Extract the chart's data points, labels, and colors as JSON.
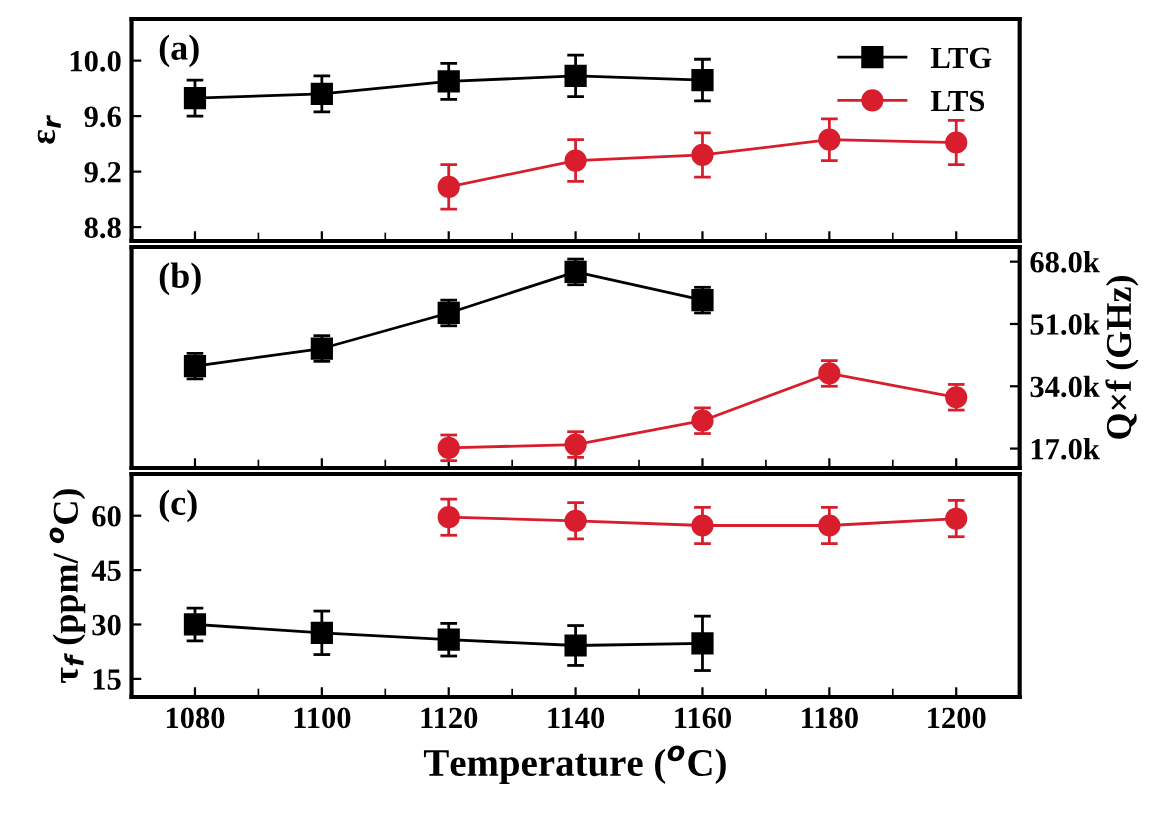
{
  "chart_data": [
    {
      "type": "line",
      "ylabel": "ε$_{r}$",
      "annotations": [
        "(a)"
      ],
      "legend": "top right",
      "tick_labels": "y",
      "x": [
        1080,
        1100,
        1120,
        1140,
        1160,
        1180,
        1200
      ],
      "xlim": [
        1070,
        1210
      ],
      "xticks": [
        1080,
        1100,
        1120,
        1140,
        1160,
        1180,
        1200
      ],
      "ylim": [
        8.7,
        10.3
      ],
      "yticks": [
        {
          "value": 8.8,
          "label": "8.8"
        },
        {
          "value": 9.2,
          "label": "9.2"
        },
        {
          "value": 9.6,
          "label": "9.6"
        },
        {
          "value": 10.0,
          "label": "10.0"
        }
      ],
      "series": [
        {
          "name": "LTG",
          "color": "#000000",
          "marker": "square",
          "values": [
            9.73,
            9.76,
            9.85,
            9.89,
            9.86,
            null,
            null
          ],
          "errors": [
            0.13,
            0.13,
            0.13,
            0.15,
            0.15,
            null,
            null
          ]
        },
        {
          "name": "LTS",
          "color": "#d81e2c",
          "marker": "circle",
          "values": [
            null,
            null,
            9.09,
            9.28,
            9.32,
            9.43,
            9.41
          ],
          "errors": [
            null,
            null,
            0.16,
            0.15,
            0.16,
            0.15,
            0.16
          ]
        }
      ]
    },
    {
      "type": "line",
      "y2label": "Q×f (GHz)",
      "annotations": [
        "(b)"
      ],
      "tick_labels": "y",
      "x": [
        1080,
        1100,
        1120,
        1140,
        1160,
        1180,
        1200
      ],
      "xlim": [
        1070,
        1210
      ],
      "xticks": [
        1080,
        1100,
        1120,
        1140,
        1160,
        1180,
        1200
      ],
      "y2lim": [
        11700,
        72000
      ],
      "y2ticks": [
        {
          "value": 17000,
          "label": "17.0k"
        },
        {
          "value": 34000,
          "label": "34.0k"
        },
        {
          "value": 51000,
          "label": "51.0k"
        },
        {
          "value": 68000,
          "label": "68.0k"
        }
      ],
      "series": [
        {
          "color": "#000000",
          "marker": "square",
          "axis": "y2",
          "values": [
            39500,
            44300,
            54000,
            65200,
            57500,
            null,
            null
          ],
          "errors": [
            3500,
            3500,
            3500,
            3500,
            3500,
            null,
            null
          ]
        },
        {
          "color": "#d81e2c",
          "marker": "circle",
          "axis": "y2",
          "values": [
            null,
            null,
            17200,
            18100,
            24600,
            37500,
            31000
          ],
          "errors": [
            null,
            null,
            3500,
            3500,
            3500,
            3500,
            3500
          ]
        }
      ]
    },
    {
      "type": "line",
      "ylabel": "τ$_{f}$ (ppm/ $^{o}$C)",
      "xlabel": "Temperature ($^{o}$C)",
      "annotations": [
        "(c)"
      ],
      "x": [
        1080,
        1100,
        1120,
        1140,
        1160,
        1180,
        1200
      ],
      "xlim": [
        1070,
        1210
      ],
      "xticks": [
        1080,
        1100,
        1120,
        1140,
        1160,
        1180,
        1200
      ],
      "ylim": [
        10,
        71.5
      ],
      "yticks": [
        15,
        30,
        45,
        60
      ],
      "series": [
        {
          "color": "#000000",
          "marker": "square",
          "values": [
            30,
            27.7,
            25.8,
            24.2,
            24.8,
            null,
            null
          ],
          "errors": [
            4.5,
            6,
            4.5,
            5.5,
            7.5,
            null,
            null
          ]
        },
        {
          "color": "#d81e2c",
          "marker": "circle",
          "values": [
            null,
            null,
            59.6,
            58.6,
            57.3,
            57.3,
            59.2
          ],
          "errors": [
            null,
            null,
            5,
            5,
            5,
            5,
            5
          ]
        }
      ]
    }
  ]
}
